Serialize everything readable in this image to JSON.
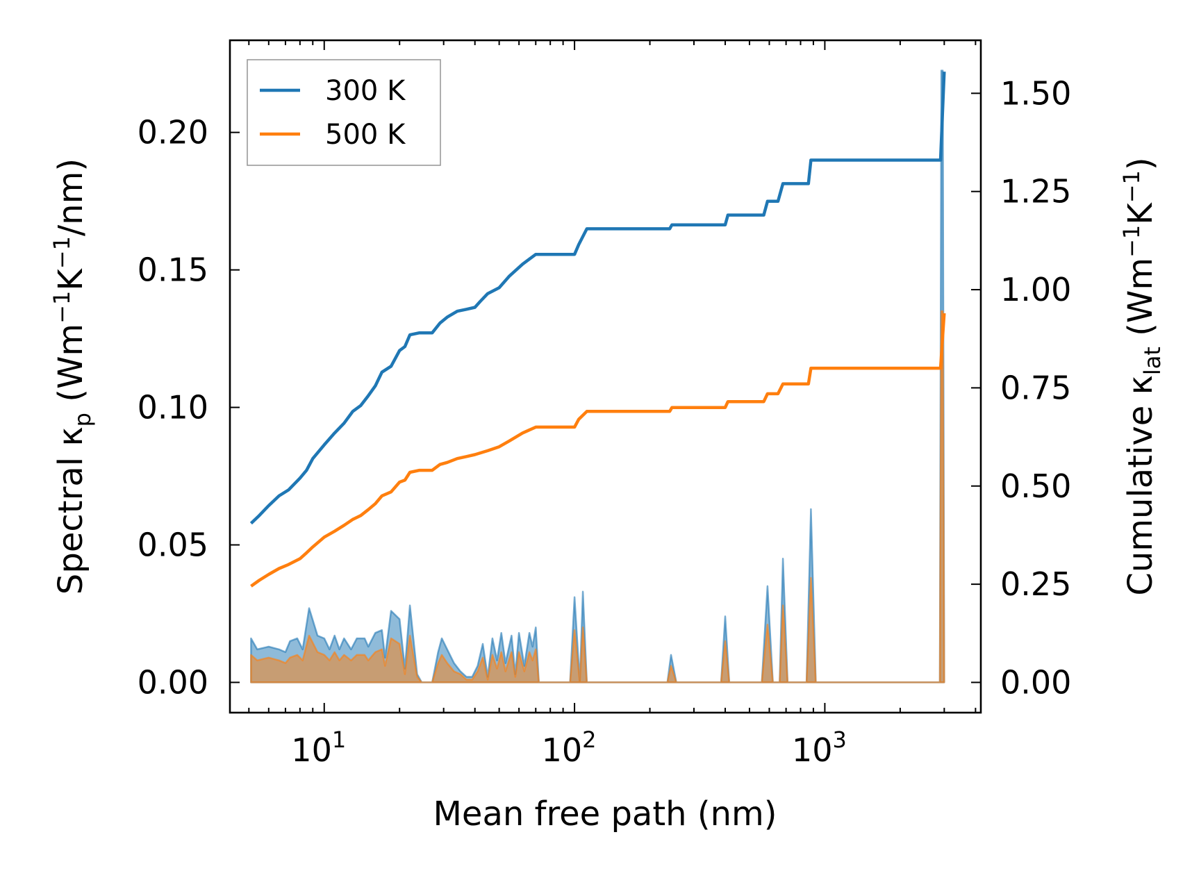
{
  "chart_data": {
    "type": "line",
    "xlabel": "Mean free path (nm)",
    "x_scale": "log",
    "xlim": [
      4.2,
      4200
    ],
    "x_ticks": [
      {
        "value": 10,
        "base": "10",
        "exp": "1"
      },
      {
        "value": 100,
        "base": "10",
        "exp": "2"
      },
      {
        "value": 1000,
        "base": "10",
        "exp": "3"
      }
    ],
    "y_left": {
      "label": {
        "main": "Spectral κ",
        "sub": "p",
        "unit_pre": " (Wm",
        "sup1": "−1",
        "mid": "K",
        "sup2": "−1",
        "unit_post": "/nm)"
      },
      "lim": [
        -0.011,
        0.2335
      ],
      "ticks": [
        0.0,
        0.05,
        0.1,
        0.15,
        0.2
      ],
      "tick_labels": [
        "0.00",
        "0.05",
        "0.10",
        "0.15",
        "0.20"
      ]
    },
    "y_right": {
      "label": {
        "main": "Cumulative κ",
        "sub": "lat",
        "unit_pre": " (Wm",
        "sup1": "−1",
        "mid": "K",
        "sup2": "−1",
        "unit_post": ")"
      },
      "lim": [
        -0.077,
        1.635
      ],
      "ticks": [
        0.0,
        0.25,
        0.5,
        0.75,
        1.0,
        1.25,
        1.5
      ],
      "tick_labels": [
        "0.00",
        "0.25",
        "0.50",
        "0.75",
        "1.00",
        "1.25",
        "1.50"
      ]
    },
    "legend": {
      "position": "top-left",
      "entries": [
        "300 K",
        "500 K"
      ]
    },
    "colors": {
      "s300": "#1f77b4",
      "s500": "#ff7f0e",
      "fill300": "#1f77b4",
      "fill500": "#ff7f0e"
    },
    "series": [
      {
        "name": "300 K",
        "axis": "right",
        "kind": "cumulative",
        "points": [
          [
            5.1,
            0.405
          ],
          [
            5.5,
            0.425
          ],
          [
            6,
            0.45
          ],
          [
            6.6,
            0.475
          ],
          [
            7.2,
            0.49
          ],
          [
            8,
            0.52
          ],
          [
            8.5,
            0.54
          ],
          [
            9,
            0.57
          ],
          [
            10,
            0.605
          ],
          [
            11,
            0.635
          ],
          [
            12,
            0.66
          ],
          [
            13,
            0.69
          ],
          [
            14,
            0.705
          ],
          [
            15,
            0.73
          ],
          [
            16,
            0.755
          ],
          [
            17,
            0.79
          ],
          [
            18.5,
            0.805
          ],
          [
            20,
            0.845
          ],
          [
            21,
            0.855
          ],
          [
            22,
            0.885
          ],
          [
            24,
            0.89
          ],
          [
            27,
            0.89
          ],
          [
            29,
            0.915
          ],
          [
            31,
            0.93
          ],
          [
            34,
            0.945
          ],
          [
            37,
            0.95
          ],
          [
            40,
            0.955
          ],
          [
            42,
            0.97
          ],
          [
            45,
            0.99
          ],
          [
            50,
            1.005
          ],
          [
            55,
            1.035
          ],
          [
            62,
            1.065
          ],
          [
            70,
            1.09
          ],
          [
            100,
            1.09
          ],
          [
            104,
            1.115
          ],
          [
            112,
            1.155
          ],
          [
            240,
            1.155
          ],
          [
            245,
            1.165
          ],
          [
            400,
            1.165
          ],
          [
            410,
            1.19
          ],
          [
            570,
            1.19
          ],
          [
            590,
            1.225
          ],
          [
            650,
            1.225
          ],
          [
            680,
            1.27
          ],
          [
            860,
            1.27
          ],
          [
            880,
            1.33
          ],
          [
            2900,
            1.33
          ],
          [
            3000,
            1.555
          ]
        ]
      },
      {
        "name": "500 K",
        "axis": "right",
        "kind": "cumulative",
        "points": [
          [
            5.1,
            0.245
          ],
          [
            5.5,
            0.26
          ],
          [
            6,
            0.275
          ],
          [
            6.6,
            0.29
          ],
          [
            7.2,
            0.3
          ],
          [
            8,
            0.315
          ],
          [
            8.5,
            0.33
          ],
          [
            9,
            0.345
          ],
          [
            10,
            0.37
          ],
          [
            11,
            0.385
          ],
          [
            12,
            0.4
          ],
          [
            13,
            0.415
          ],
          [
            14,
            0.425
          ],
          [
            15,
            0.44
          ],
          [
            16,
            0.455
          ],
          [
            17,
            0.475
          ],
          [
            18.5,
            0.485
          ],
          [
            20,
            0.51
          ],
          [
            21,
            0.515
          ],
          [
            22,
            0.535
          ],
          [
            24,
            0.54
          ],
          [
            27,
            0.54
          ],
          [
            29,
            0.555
          ],
          [
            31,
            0.56
          ],
          [
            34,
            0.57
          ],
          [
            37,
            0.575
          ],
          [
            40,
            0.58
          ],
          [
            45,
            0.59
          ],
          [
            50,
            0.6
          ],
          [
            55,
            0.615
          ],
          [
            62,
            0.635
          ],
          [
            70,
            0.65
          ],
          [
            100,
            0.65
          ],
          [
            104,
            0.67
          ],
          [
            112,
            0.69
          ],
          [
            240,
            0.69
          ],
          [
            245,
            0.7
          ],
          [
            400,
            0.7
          ],
          [
            410,
            0.715
          ],
          [
            570,
            0.715
          ],
          [
            590,
            0.735
          ],
          [
            650,
            0.735
          ],
          [
            680,
            0.76
          ],
          [
            860,
            0.76
          ],
          [
            880,
            0.8
          ],
          [
            2900,
            0.8
          ],
          [
            3000,
            0.94
          ]
        ]
      },
      {
        "name": "300 K spectral",
        "axis": "left",
        "kind": "spectral",
        "points": [
          [
            5.1,
            0.016
          ],
          [
            5.4,
            0.012
          ],
          [
            6,
            0.013
          ],
          [
            6.6,
            0.012
          ],
          [
            7,
            0.011
          ],
          [
            7.3,
            0.015
          ],
          [
            7.8,
            0.016
          ],
          [
            8.2,
            0.012
          ],
          [
            8.7,
            0.027
          ],
          [
            9.4,
            0.017
          ],
          [
            10,
            0.016
          ],
          [
            10.5,
            0.012
          ],
          [
            11,
            0.017
          ],
          [
            11.5,
            0.012
          ],
          [
            12,
            0.016
          ],
          [
            12.8,
            0.012
          ],
          [
            13.5,
            0.016
          ],
          [
            14.5,
            0.016
          ],
          [
            15,
            0.013
          ],
          [
            16,
            0.018
          ],
          [
            17,
            0.019
          ],
          [
            17.5,
            0.009
          ],
          [
            18.5,
            0.026
          ],
          [
            20,
            0.023
          ],
          [
            21,
            0.005
          ],
          [
            22,
            0.028
          ],
          [
            23.5,
            0.003
          ],
          [
            24.5,
            0
          ],
          [
            27,
            0
          ],
          [
            28.5,
            0.011
          ],
          [
            29.5,
            0.016
          ],
          [
            31,
            0.012
          ],
          [
            33,
            0.007
          ],
          [
            35,
            0.004
          ],
          [
            37,
            0.002
          ],
          [
            39,
            0.002
          ],
          [
            41,
            0.006
          ],
          [
            43,
            0.014
          ],
          [
            45,
            0.002
          ],
          [
            47,
            0.016
          ],
          [
            49,
            0.008
          ],
          [
            51,
            0.018
          ],
          [
            53,
            0.007
          ],
          [
            56,
            0.017
          ],
          [
            58,
            0.003
          ],
          [
            60,
            0.018
          ],
          [
            63,
            0.006
          ],
          [
            66,
            0.018
          ],
          [
            68,
            0.013
          ],
          [
            70,
            0.02
          ],
          [
            72,
            0
          ],
          [
            96,
            0
          ],
          [
            100,
            0.031
          ],
          [
            105,
            0
          ],
          [
            108,
            0.033
          ],
          [
            112,
            0
          ],
          [
            235,
            0
          ],
          [
            243,
            0.01
          ],
          [
            255,
            0
          ],
          [
            385,
            0
          ],
          [
            400,
            0.024
          ],
          [
            415,
            0
          ],
          [
            560,
            0
          ],
          [
            590,
            0.035
          ],
          [
            620,
            0
          ],
          [
            660,
            0
          ],
          [
            680,
            0.045
          ],
          [
            710,
            0
          ],
          [
            845,
            0
          ],
          [
            880,
            0.063
          ],
          [
            920,
            0
          ],
          [
            2880,
            0
          ],
          [
            2920,
            0.2225
          ],
          [
            2960,
            0.2225
          ],
          [
            3000,
            0
          ]
        ]
      },
      {
        "name": "500 K spectral",
        "axis": "left",
        "kind": "spectral",
        "points": [
          [
            5.1,
            0.01
          ],
          [
            5.4,
            0.008
          ],
          [
            6,
            0.009
          ],
          [
            6.6,
            0.008
          ],
          [
            7,
            0.007
          ],
          [
            7.3,
            0.009
          ],
          [
            7.8,
            0.01
          ],
          [
            8.2,
            0.008
          ],
          [
            8.7,
            0.017
          ],
          [
            9.4,
            0.011
          ],
          [
            10,
            0.01
          ],
          [
            10.5,
            0.008
          ],
          [
            11,
            0.011
          ],
          [
            11.5,
            0.008
          ],
          [
            12,
            0.01
          ],
          [
            12.8,
            0.008
          ],
          [
            13.5,
            0.01
          ],
          [
            14.5,
            0.01
          ],
          [
            15,
            0.008
          ],
          [
            16,
            0.011
          ],
          [
            17,
            0.012
          ],
          [
            17.5,
            0.006
          ],
          [
            18.5,
            0.016
          ],
          [
            20,
            0.014
          ],
          [
            21,
            0.003
          ],
          [
            22,
            0.017
          ],
          [
            23.5,
            0.002
          ],
          [
            24.5,
            0
          ],
          [
            27,
            0
          ],
          [
            28.5,
            0.007
          ],
          [
            29.5,
            0.01
          ],
          [
            31,
            0.007
          ],
          [
            33,
            0.004
          ],
          [
            35,
            0.003
          ],
          [
            37,
            0.001
          ],
          [
            39,
            0.001
          ],
          [
            41,
            0.004
          ],
          [
            43,
            0.009
          ],
          [
            45,
            0.001
          ],
          [
            47,
            0.01
          ],
          [
            49,
            0.005
          ],
          [
            51,
            0.011
          ],
          [
            53,
            0.004
          ],
          [
            56,
            0.011
          ],
          [
            58,
            0.002
          ],
          [
            60,
            0.011
          ],
          [
            63,
            0.004
          ],
          [
            66,
            0.011
          ],
          [
            68,
            0.008
          ],
          [
            70,
            0.012
          ],
          [
            72,
            0
          ],
          [
            96,
            0
          ],
          [
            100,
            0.019
          ],
          [
            105,
            0
          ],
          [
            108,
            0.02
          ],
          [
            112,
            0
          ],
          [
            235,
            0
          ],
          [
            243,
            0.006
          ],
          [
            255,
            0
          ],
          [
            385,
            0
          ],
          [
            400,
            0.015
          ],
          [
            415,
            0
          ],
          [
            560,
            0
          ],
          [
            590,
            0.021
          ],
          [
            620,
            0
          ],
          [
            660,
            0
          ],
          [
            680,
            0.028
          ],
          [
            710,
            0
          ],
          [
            845,
            0
          ],
          [
            880,
            0.038
          ],
          [
            920,
            0
          ],
          [
            2880,
            0
          ],
          [
            2920,
            0.135
          ],
          [
            2960,
            0.135
          ],
          [
            3000,
            0
          ]
        ]
      }
    ]
  }
}
